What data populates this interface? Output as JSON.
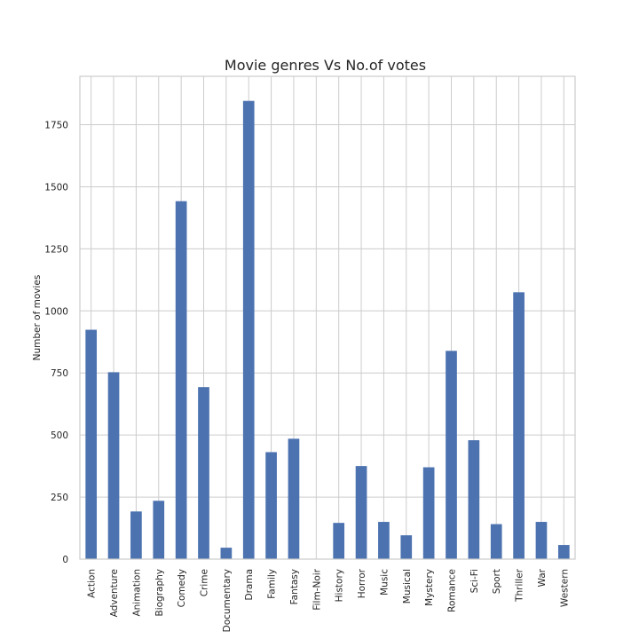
{
  "chart_data": {
    "type": "bar",
    "title": "Movie genres Vs No.of votes",
    "xlabel": "",
    "ylabel": "Number of movies",
    "categories": [
      "Action",
      "Adventure",
      "Animation",
      "Biography",
      "Comedy",
      "Crime",
      "Documentary",
      "Drama",
      "Family",
      "Fantasy",
      "Film-Noir",
      "History",
      "Horror",
      "Music",
      "Musical",
      "Mystery",
      "Romance",
      "Sci-Fi",
      "Sport",
      "Thriller",
      "War",
      "Western"
    ],
    "values": [
      924,
      753,
      192,
      235,
      1442,
      693,
      46,
      1846,
      431,
      485,
      1,
      146,
      375,
      150,
      96,
      370,
      839,
      479,
      141,
      1075,
      150,
      57
    ],
    "ylim": [
      0,
      1945
    ],
    "yticks": [
      0,
      250,
      500,
      750,
      1000,
      1250,
      1500,
      1750
    ],
    "grid": true,
    "legend": "none",
    "bar_color": "#4c72b0"
  }
}
